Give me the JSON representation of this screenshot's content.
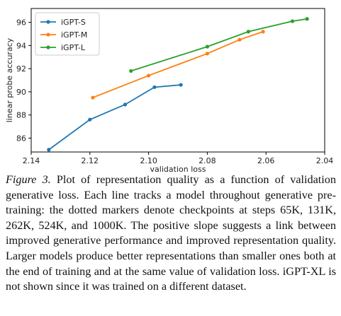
{
  "chart_data": {
    "type": "line",
    "title": "",
    "xlabel": "validation loss",
    "ylabel": "linear probe accuracy",
    "xlim": [
      2.14,
      2.04
    ],
    "ylim": [
      84.8,
      97.2
    ],
    "x_inverted": true,
    "x_ticks": [
      "2.14",
      "2.12",
      "2.10",
      "2.08",
      "2.06",
      "2.04"
    ],
    "y_ticks": [
      "86",
      "88",
      "90",
      "92",
      "94",
      "96"
    ],
    "grid": false,
    "legend_position": "top-left",
    "series": [
      {
        "name": "iGPT-S",
        "color": "#1f77b4",
        "x": [
          2.134,
          2.12,
          2.108,
          2.098,
          2.089
        ],
        "y": [
          85.0,
          87.6,
          88.9,
          90.4,
          90.6
        ]
      },
      {
        "name": "iGPT-M",
        "color": "#ff7f0e",
        "x": [
          2.119,
          2.1,
          2.08,
          2.069,
          2.061
        ],
        "y": [
          89.5,
          91.4,
          93.3,
          94.5,
          95.2
        ]
      },
      {
        "name": "iGPT-L",
        "color": "#2ca02c",
        "x": [
          2.106,
          2.08,
          2.066,
          2.051,
          2.046
        ],
        "y": [
          91.8,
          93.9,
          95.2,
          96.1,
          96.3
        ]
      }
    ]
  },
  "caption": {
    "label": "Figure 3.",
    "text": " Plot of representation quality as a function of validation generative loss. Each line tracks a model throughout generative pre-training: the dotted markers denote checkpoints at steps 65K, 131K, 262K, 524K, and 1000K. The positive slope suggests a link between improved generative performance and improved representation quality. Larger models produce better representations than smaller ones both at the end of training and at the same value of validation loss. iGPT-XL is not shown since it was trained on a different dataset."
  }
}
